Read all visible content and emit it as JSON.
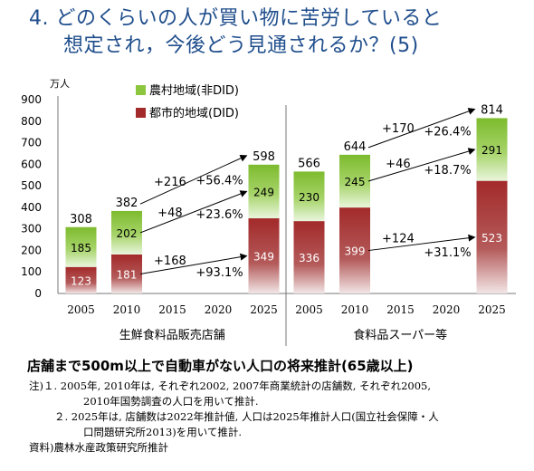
{
  "title": {
    "line1": "4. どのくらいの人が買い物に苦労していると",
    "line2": "想定され，今後どう見通されるか？(5)"
  },
  "chart_data": {
    "type": "bar",
    "stacked": true,
    "unit": "万人",
    "ylim": [
      0,
      900
    ],
    "yticks": [
      0,
      100,
      200,
      300,
      400,
      500,
      600,
      700,
      800,
      900
    ],
    "grid": false,
    "legend_position": "top-left",
    "groups": [
      {
        "name": "生鮮食料品販売店舗",
        "categories": [
          "2005",
          "2010",
          "2015",
          "2020",
          "2025"
        ],
        "series": [
          {
            "name": "都市的地域(DID)",
            "values": [
              123,
              181,
              null,
              null,
              349
            ]
          },
          {
            "name": "農村地域(非DID)",
            "values": [
              185,
              202,
              null,
              null,
              249
            ]
          }
        ],
        "totals": [
          308,
          382,
          null,
          null,
          598
        ],
        "changes": [
          {
            "label": "+216",
            "pct": "+56.4%",
            "series": "total"
          },
          {
            "label": "+48",
            "pct": "+23.6%",
            "series": "農村地域(非DID)"
          },
          {
            "label": "+168",
            "pct": "+93.1%",
            "series": "都市的地域(DID)"
          }
        ]
      },
      {
        "name": "食料品スーパー等",
        "categories": [
          "2005",
          "2010",
          "2015",
          "2020",
          "2025"
        ],
        "series": [
          {
            "name": "都市的地域(DID)",
            "values": [
              336,
              399,
              null,
              null,
              523
            ]
          },
          {
            "name": "農村地域(非DID)",
            "values": [
              230,
              245,
              null,
              null,
              291
            ]
          }
        ],
        "totals": [
          566,
          644,
          null,
          null,
          814
        ],
        "changes": [
          {
            "label": "+170",
            "pct": "+26.4%",
            "series": "total"
          },
          {
            "label": "+46",
            "pct": "+18.7%",
            "series": "農村地域(非DID)"
          },
          {
            "label": "+124",
            "pct": "+31.1%",
            "series": "都市的地域(DID)"
          }
        ]
      }
    ],
    "legend": [
      {
        "name": "農村地域(非DID)",
        "color": "#8cc63f"
      },
      {
        "name": "都市的地域(DID)",
        "color": "#a32a2a"
      }
    ]
  },
  "subtitle": "店舗まで500m以上で自動車がない人口の将来推計(65歳以上)",
  "notes": [
    "注)１. 2005年, 2010年は, それぞれ2002, 2007年商業統計の店舗数, それぞれ2005,",
    "2010年国勢調査の人口を用いて推計.",
    "２. 2025年は, 店舗数は2022年推計値, 人口は2025年推計人口(国立社会保障・人",
    "口問題研究所2013)を用いて推計.",
    "資料)農林水産政策研究所推計"
  ],
  "colors": {
    "title": "#1f4e8c",
    "did": "#a32a2a",
    "non_did": "#8cc63f"
  }
}
